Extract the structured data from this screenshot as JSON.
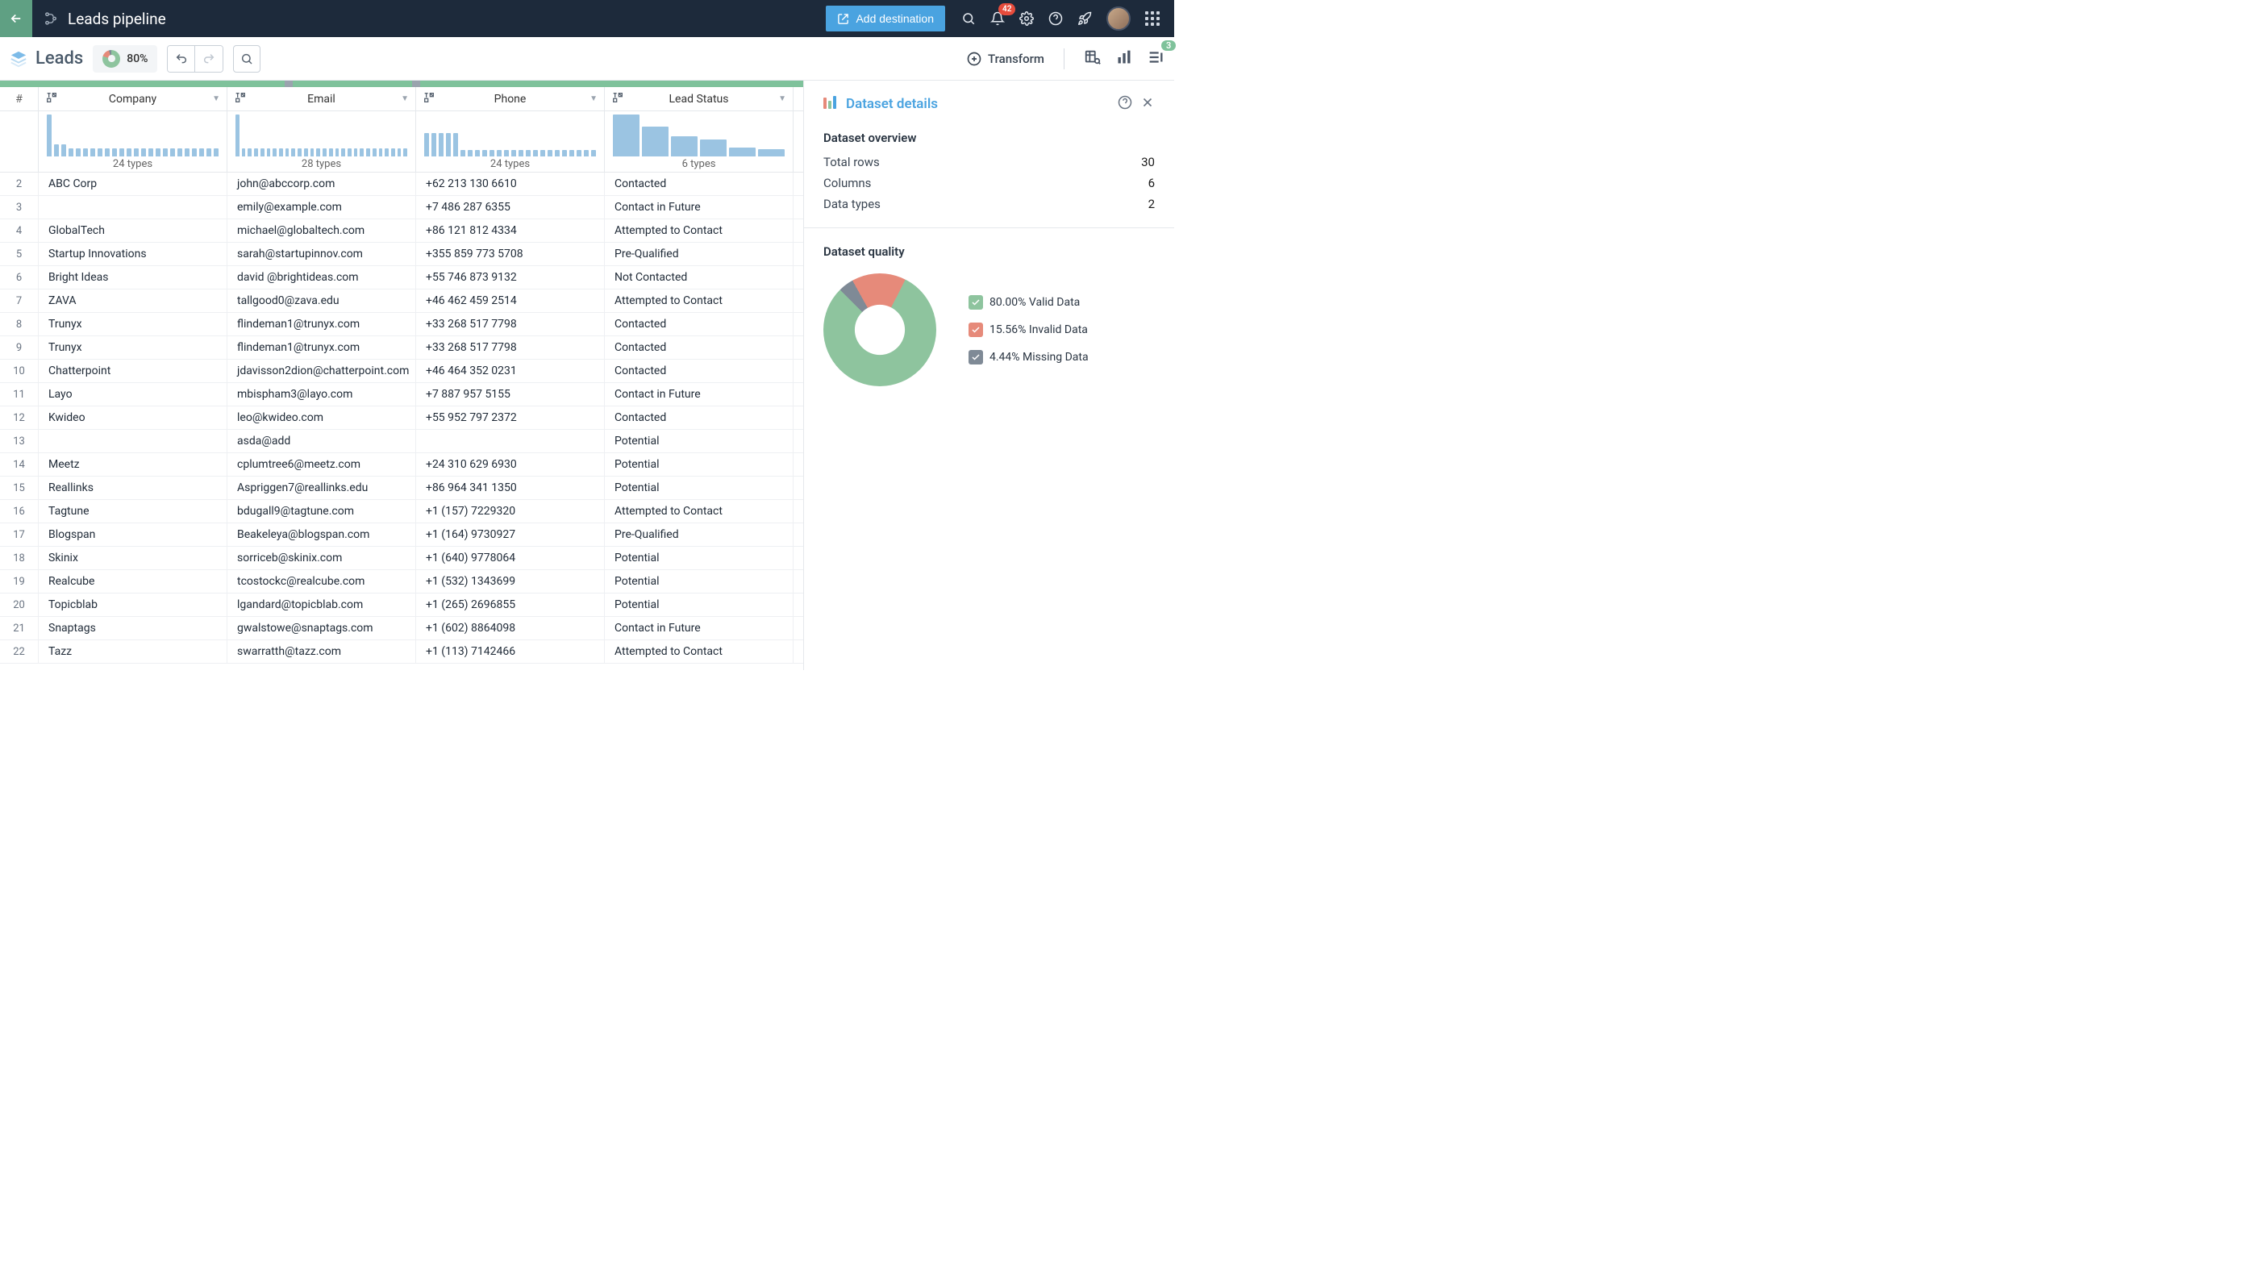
{
  "topbar": {
    "title": "Leads pipeline",
    "add_destination": "Add destination",
    "notification_count": "42"
  },
  "secbar": {
    "leads_label": "Leads",
    "quality_pct": "80%",
    "transform": "Transform",
    "panel_count": "3"
  },
  "columns": [
    {
      "label": "Company",
      "types_label": "24 types",
      "hist": [
        1.0,
        0.28,
        0.28,
        0.2,
        0.2,
        0.2,
        0.2,
        0.2,
        0.2,
        0.2,
        0.2,
        0.2,
        0.2,
        0.2,
        0.2,
        0.2,
        0.2,
        0.2,
        0.2,
        0.2,
        0.2,
        0.2,
        0.2,
        0.2
      ]
    },
    {
      "label": "Email",
      "types_label": "28 types",
      "hist": [
        1.0,
        0.2,
        0.2,
        0.2,
        0.2,
        0.2,
        0.2,
        0.2,
        0.2,
        0.2,
        0.2,
        0.2,
        0.2,
        0.2,
        0.2,
        0.2,
        0.2,
        0.2,
        0.2,
        0.2,
        0.2,
        0.2,
        0.2,
        0.2,
        0.2,
        0.2,
        0.2,
        0.2
      ]
    },
    {
      "label": "Phone",
      "types_label": "24 types",
      "hist": [
        0.55,
        0.55,
        0.55,
        0.55,
        0.55,
        0.15,
        0.15,
        0.15,
        0.15,
        0.15,
        0.15,
        0.15,
        0.15,
        0.15,
        0.15,
        0.15,
        0.15,
        0.15,
        0.15,
        0.15,
        0.15,
        0.15,
        0.15,
        0.15
      ]
    },
    {
      "label": "Lead Status",
      "types_label": "6 types",
      "hist": [
        1.0,
        0.72,
        0.48,
        0.4,
        0.22,
        0.18
      ]
    }
  ],
  "rows": [
    {
      "n": "2",
      "company": "ABC Corp",
      "email": "john@abccorp.com",
      "phone": "+62 213 130 6610",
      "status": "Contacted"
    },
    {
      "n": "3",
      "company": "",
      "email": "emily@example.com",
      "phone": "+7 486 287 6355",
      "status": "Contact in Future"
    },
    {
      "n": "4",
      "company": "GlobalTech",
      "email": "michael@globaltech.com",
      "phone": "+86 121 812 4334",
      "status": "Attempted to Contact"
    },
    {
      "n": "5",
      "company": "Startup Innovations",
      "email": "sarah@startupinnov.com",
      "phone": "+355 859 773 5708",
      "status": "Pre-Qualified"
    },
    {
      "n": "6",
      "company": "Bright Ideas",
      "email": "david  @brightideas.com",
      "phone": "+55 746 873 9132",
      "status": "Not Contacted"
    },
    {
      "n": "7",
      "company": "ZAVA",
      "email": "tallgood0@zava.edu",
      "phone": "+46 462 459 2514",
      "status": "Attempted to Contact"
    },
    {
      "n": "8",
      "company": "Trunyx",
      "email": "flindeman1@trunyx.com",
      "phone": "+33 268 517 7798",
      "status": "Contacted"
    },
    {
      "n": "9",
      "company": "Trunyx",
      "email": "flindeman1@trunyx.com",
      "phone": "+33 268 517 7798",
      "status": "Contacted"
    },
    {
      "n": "10",
      "company": "Chatterpoint",
      "email": "jdavisson2dion@chatterpoint.com",
      "phone": "+46 464 352 0231",
      "status": "Contacted"
    },
    {
      "n": "11",
      "company": "Layo",
      "email": "mbispham3@layo.com",
      "phone": "+7 887 957 5155",
      "status": "Contact in Future"
    },
    {
      "n": "12",
      "company": "Kwideo",
      "email": "leo@kwideo.com",
      "phone": "+55 952 797 2372",
      "status": "Contacted"
    },
    {
      "n": "13",
      "company": "",
      "email": "asda@add",
      "phone": "",
      "status": "Potential"
    },
    {
      "n": "14",
      "company": "Meetz",
      "email": "cplumtree6@meetz.com",
      "phone": "+24 310 629 6930",
      "status": "Potential"
    },
    {
      "n": "15",
      "company": "Reallinks",
      "email": "Aspriggen7@reallinks.edu",
      "phone": "+86 964 341 1350",
      "status": "Potential"
    },
    {
      "n": "16",
      "company": "Tagtune",
      "email": "bdugall9@tagtune.com",
      "phone": "+1 (157) 7229320",
      "status": "Attempted to Contact"
    },
    {
      "n": "17",
      "company": "Blogspan",
      "email": "Beakeleya@blogspan.com",
      "phone": "+1 (164) 9730927",
      "status": "Pre-Qualified"
    },
    {
      "n": "18",
      "company": "Skinix",
      "email": "sorriceb@skinix.com",
      "phone": "+1 (640) 9778064",
      "status": "Potential"
    },
    {
      "n": "19",
      "company": "Realcube",
      "email": "tcostockc@realcube.com",
      "phone": "+1 (532) 1343699",
      "status": "Potential"
    },
    {
      "n": "20",
      "company": "Topicblab",
      "email": "lgandard@topicblab.com",
      "phone": "+1 (265) 2696855",
      "status": "Potential"
    },
    {
      "n": "21",
      "company": "Snaptags",
      "email": "gwalstowe@snaptags.com",
      "phone": "+1 (602) 8864098",
      "status": "Contact in Future"
    },
    {
      "n": "22",
      "company": "Tazz",
      "email": "swarratth@tazz.com",
      "phone": "+1 (113) 7142466",
      "status": "Attempted to Contact"
    }
  ],
  "panel": {
    "title": "Dataset details",
    "overview_title": "Dataset overview",
    "total_rows_label": "Total rows",
    "total_rows": "30",
    "columns_label": "Columns",
    "columns": "6",
    "data_types_label": "Data types",
    "data_types": "2",
    "quality_title": "Dataset quality",
    "donut": {
      "valid_pct": 80.0,
      "valid_color": "#8ec49e",
      "invalid_pct": 15.56,
      "invalid_color": "#e68a7a",
      "missing_pct": 4.44,
      "missing_color": "#7f8a96",
      "bg": "#ffffff"
    },
    "legend": {
      "valid": "80.00% Valid Data",
      "invalid": "15.56% Invalid Data",
      "missing": "4.44% Missing Data"
    }
  },
  "colors": {
    "topbar_bg": "#1d2a3b",
    "back_bg": "#5fa083",
    "primary_blue": "#4aa3e0",
    "hist_bar": "#9bc4e2",
    "greenbar": "#7fc29b",
    "greenbar_gap": "#9aa3ae"
  },
  "greenbar_gaps": [
    {
      "left_pct": 35.4,
      "width_pct": 1.0
    },
    {
      "left_pct": 51.3,
      "width_pct": 1.0
    }
  ]
}
